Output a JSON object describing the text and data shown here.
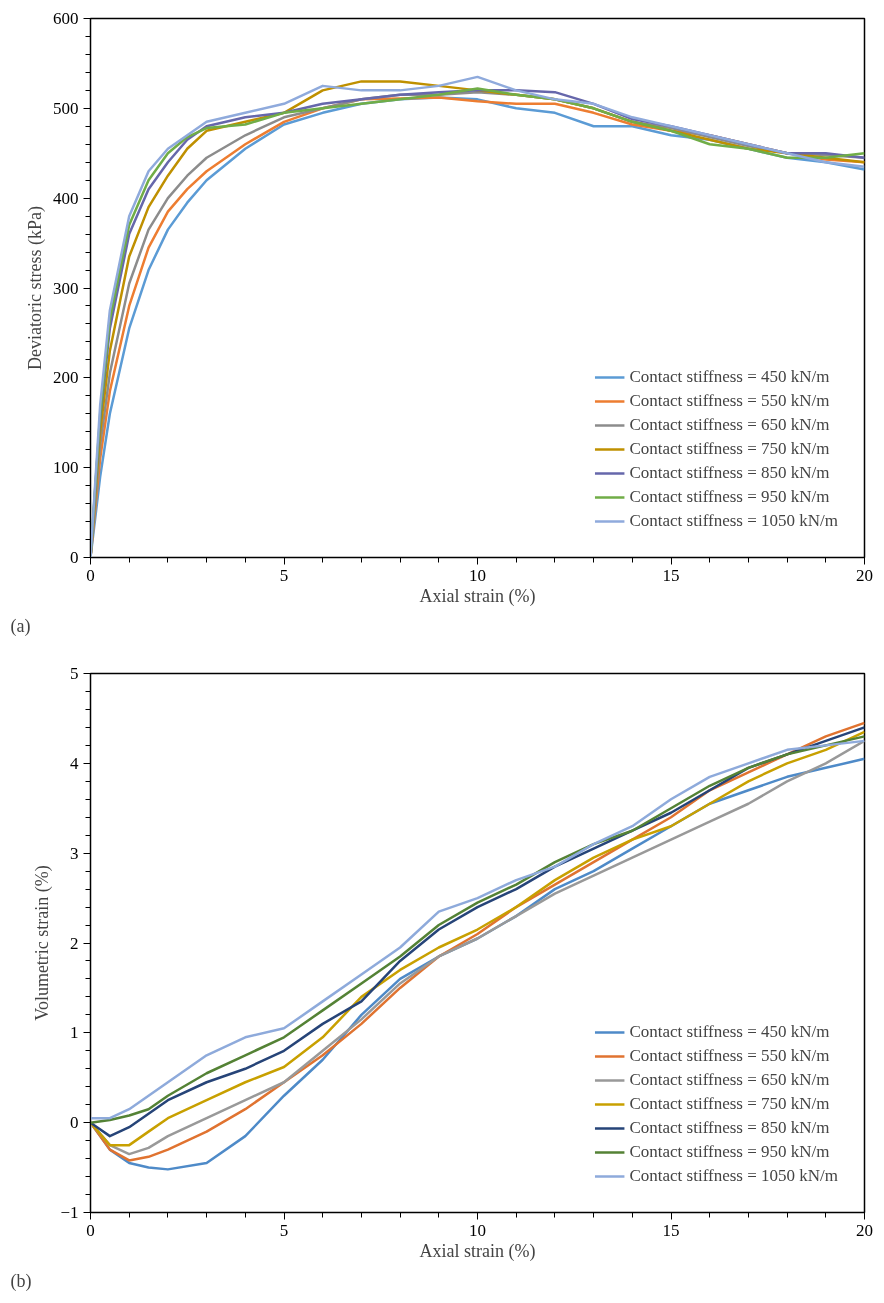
{
  "chart_data": [
    {
      "type": "line",
      "xlabel": "Axial strain (%)",
      "ylabel": "Deviatoric stress (kPa)",
      "annotations": [
        "(a)"
      ],
      "xlim": [
        0,
        20
      ],
      "ylim": [
        0,
        600
      ],
      "xticks": [
        0,
        5,
        10,
        15,
        20
      ],
      "yticks": [
        0,
        100,
        200,
        300,
        400,
        500,
        600
      ],
      "grid": false,
      "legend": "bottom right",
      "x": [
        0,
        0.25,
        0.5,
        1,
        1.5,
        2,
        2.5,
        3,
        4,
        5,
        6,
        7,
        8,
        9,
        10,
        11,
        12,
        13,
        14,
        15,
        16,
        17,
        18,
        19,
        20
      ],
      "series": [
        {
          "name": "Contact stiffness = 450 kN/m",
          "color": "#5b9bd5",
          "values": [
            0,
            90,
            160,
            255,
            320,
            365,
            395,
            420,
            455,
            482,
            495,
            505,
            510,
            512,
            510,
            500,
            495,
            480,
            480,
            470,
            465,
            455,
            445,
            440,
            432
          ]
        },
        {
          "name": "Contact stiffness = 550 kN/m",
          "color": "#ed7d31",
          "values": [
            0,
            110,
            185,
            280,
            345,
            385,
            410,
            430,
            460,
            485,
            500,
            510,
            511,
            512,
            508,
            505,
            505,
            495,
            482,
            475,
            470,
            460,
            450,
            443,
            440
          ]
        },
        {
          "name": "Contact stiffness = 650 kN/m",
          "color": "#8c8c8c",
          "values": [
            0,
            125,
            205,
            305,
            365,
            400,
            425,
            445,
            470,
            490,
            500,
            510,
            515,
            515,
            518,
            515,
            510,
            500,
            485,
            478,
            468,
            458,
            450,
            448,
            445
          ]
        },
        {
          "name": "Contact stiffness = 750 kN/m",
          "color": "#bf9000",
          "values": [
            0,
            140,
            230,
            335,
            390,
            425,
            455,
            475,
            485,
            495,
            520,
            530,
            530,
            525,
            520,
            515,
            510,
            500,
            485,
            475,
            465,
            455,
            450,
            445,
            440
          ]
        },
        {
          "name": "Contact stiffness = 850 kN/m",
          "color": "#6667ab",
          "values": [
            0,
            155,
            255,
            360,
            410,
            440,
            465,
            480,
            490,
            495,
            505,
            510,
            515,
            518,
            520,
            520,
            518,
            505,
            488,
            480,
            470,
            460,
            450,
            450,
            445
          ]
        },
        {
          "name": "Contact stiffness = 950 kN/m",
          "color": "#70ad47",
          "values": [
            0,
            160,
            265,
            370,
            420,
            450,
            468,
            478,
            482,
            495,
            500,
            505,
            510,
            515,
            522,
            515,
            510,
            500,
            485,
            475,
            460,
            455,
            445,
            445,
            450
          ]
        },
        {
          "name": "Contact stiffness = 1050 kN/m",
          "color": "#8faadc",
          "values": [
            0,
            170,
            275,
            380,
            430,
            455,
            470,
            485,
            495,
            505,
            525,
            520,
            520,
            525,
            535,
            520,
            510,
            505,
            490,
            480,
            470,
            460,
            450,
            440,
            435
          ]
        }
      ]
    },
    {
      "type": "line",
      "xlabel": "Axial strain (%)",
      "ylabel": "Volumetric strain (%)",
      "annotations": [
        "(b)"
      ],
      "xlim": [
        0,
        20
      ],
      "ylim": [
        -1,
        5
      ],
      "xticks": [
        0,
        5,
        10,
        15,
        20
      ],
      "yticks": [
        -1,
        0,
        1,
        2,
        3,
        4,
        5
      ],
      "grid": false,
      "legend": "bottom right",
      "x": [
        0,
        0.5,
        1,
        1.5,
        2,
        3,
        4,
        5,
        6,
        7,
        8,
        9,
        10,
        11,
        12,
        13,
        14,
        15,
        16,
        17,
        18,
        19,
        20
      ],
      "series": [
        {
          "name": "Contact stiffness = 450 kN/m",
          "color": "#4e8ac8",
          "values": [
            0,
            -0.3,
            -0.45,
            -0.5,
            -0.52,
            -0.45,
            -0.15,
            0.3,
            0.7,
            1.2,
            1.6,
            1.85,
            2.05,
            2.3,
            2.6,
            2.8,
            3.05,
            3.3,
            3.55,
            3.7,
            3.85,
            3.95,
            4.05
          ]
        },
        {
          "name": "Contact stiffness = 550 kN/m",
          "color": "#e07330",
          "values": [
            0,
            -0.3,
            -0.42,
            -0.38,
            -0.3,
            -0.1,
            0.15,
            0.45,
            0.75,
            1.1,
            1.5,
            1.85,
            2.1,
            2.4,
            2.65,
            2.9,
            3.15,
            3.4,
            3.7,
            3.9,
            4.1,
            4.3,
            4.45
          ]
        },
        {
          "name": "Contact stiffness = 650 kN/m",
          "color": "#999999",
          "values": [
            0,
            -0.25,
            -0.35,
            -0.28,
            -0.15,
            0.05,
            0.25,
            0.45,
            0.8,
            1.15,
            1.55,
            1.85,
            2.05,
            2.3,
            2.55,
            2.75,
            2.95,
            3.15,
            3.35,
            3.55,
            3.8,
            4.0,
            4.25
          ]
        },
        {
          "name": "Contact stiffness = 750 kN/m",
          "color": "#c8a000",
          "values": [
            0,
            -0.25,
            -0.25,
            -0.1,
            0.05,
            0.25,
            0.45,
            0.62,
            0.95,
            1.4,
            1.7,
            1.95,
            2.15,
            2.4,
            2.7,
            2.95,
            3.15,
            3.3,
            3.55,
            3.8,
            4.0,
            4.15,
            4.35
          ]
        },
        {
          "name": "Contact stiffness = 850 kN/m",
          "color": "#264478",
          "values": [
            0,
            -0.15,
            -0.05,
            0.1,
            0.25,
            0.45,
            0.6,
            0.8,
            1.1,
            1.35,
            1.8,
            2.15,
            2.4,
            2.6,
            2.85,
            3.05,
            3.25,
            3.45,
            3.7,
            3.95,
            4.1,
            4.25,
            4.4
          ]
        },
        {
          "name": "Contact stiffness = 950 kN/m",
          "color": "#548235",
          "values": [
            0,
            0.03,
            0.08,
            0.15,
            0.3,
            0.55,
            0.75,
            0.95,
            1.25,
            1.55,
            1.85,
            2.2,
            2.45,
            2.65,
            2.9,
            3.1,
            3.25,
            3.5,
            3.75,
            3.95,
            4.1,
            4.2,
            4.3
          ]
        },
        {
          "name": "Contact stiffness = 1050 kN/m",
          "color": "#8eaadb",
          "values": [
            0.05,
            0.05,
            0.15,
            0.3,
            0.45,
            0.75,
            0.95,
            1.05,
            1.35,
            1.65,
            1.95,
            2.35,
            2.5,
            2.7,
            2.85,
            3.1,
            3.3,
            3.6,
            3.85,
            4.0,
            4.15,
            4.2,
            4.25
          ]
        }
      ]
    }
  ]
}
